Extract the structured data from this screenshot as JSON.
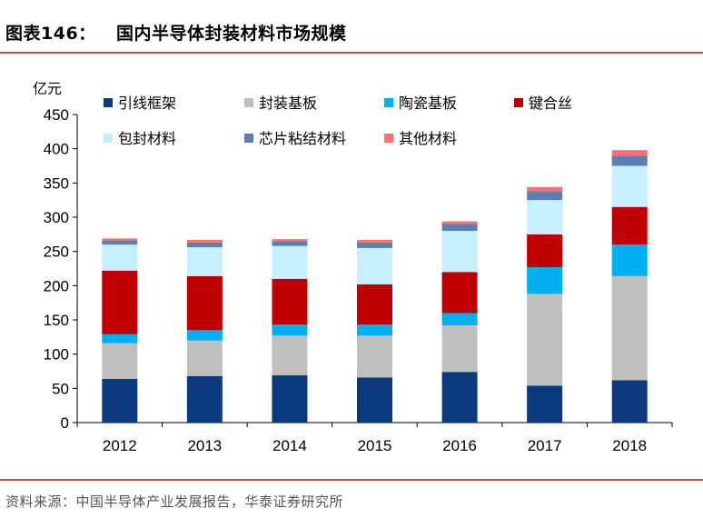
{
  "header": {
    "figure_label": "图表146：",
    "title": "国内半导体封装材料市场规模"
  },
  "footer": {
    "source": "资料来源：中国半导体产业发展报告，华泰证券研究所"
  },
  "chart_data": {
    "type": "bar",
    "stacked": true,
    "ylabel": "亿元",
    "ylim": [
      0,
      450
    ],
    "yticks": [
      0,
      50,
      100,
      150,
      200,
      250,
      300,
      350,
      400,
      450
    ],
    "categories": [
      "2012",
      "2013",
      "2014",
      "2015",
      "2016",
      "2017",
      "2018"
    ],
    "legend_placement": "top",
    "series": [
      {
        "name": "引线框架",
        "color": "#0b3a7e",
        "values": [
          64,
          68,
          69,
          66,
          74,
          54,
          62
        ]
      },
      {
        "name": "封装基板",
        "color": "#bfbfbf",
        "values": [
          52,
          52,
          58,
          61,
          68,
          134,
          152
        ]
      },
      {
        "name": "陶瓷基板",
        "color": "#00b0f0",
        "values": [
          13,
          15,
          16,
          16,
          18,
          39,
          46
        ]
      },
      {
        "name": "键合丝",
        "color": "#c00000",
        "values": [
          93,
          79,
          67,
          59,
          60,
          48,
          55
        ]
      },
      {
        "name": "包封材料",
        "color": "#c6efff",
        "values": [
          38,
          42,
          48,
          53,
          60,
          50,
          60
        ]
      },
      {
        "name": "芯片粘结材料",
        "color": "#5a7fb5",
        "values": [
          6,
          7,
          7,
          8,
          10,
          13,
          15
        ]
      },
      {
        "name": "其他材料",
        "color": "#f87171",
        "values": [
          3,
          4,
          3,
          4,
          4,
          6,
          8
        ]
      }
    ]
  }
}
